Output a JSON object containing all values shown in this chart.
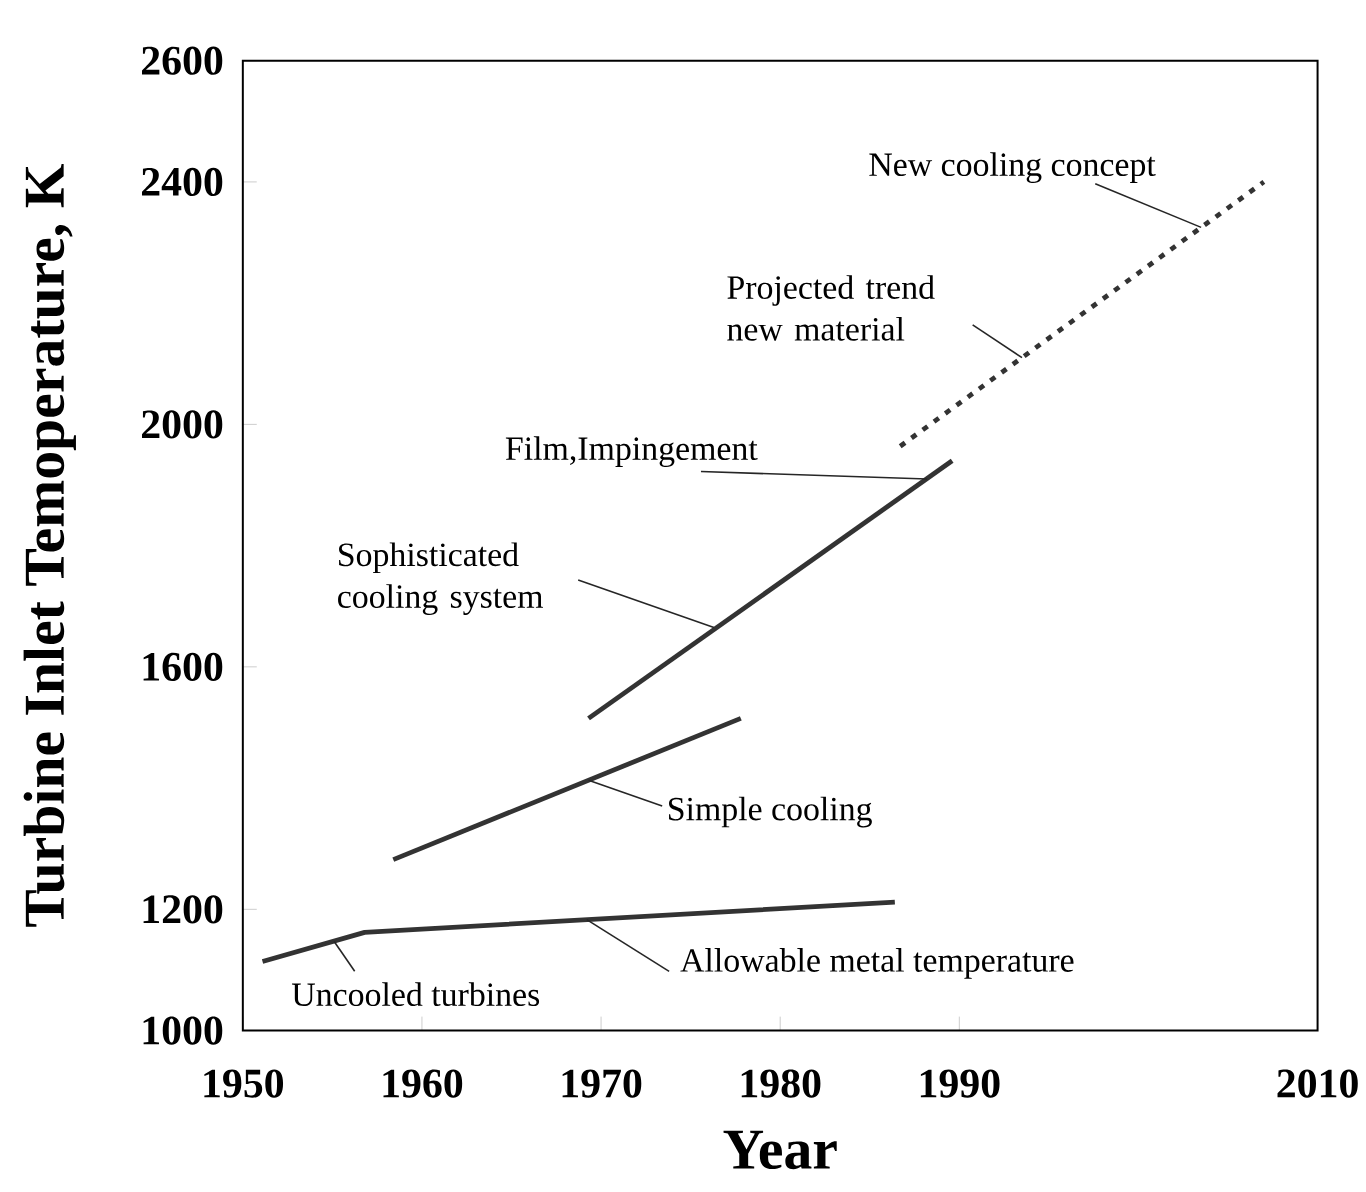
{
  "chart_data": {
    "type": "line",
    "xlabel": "Year",
    "ylabel": "Turbine Inlet Temoperature, K",
    "xlim": [
      1950,
      2010
    ],
    "xticks": [
      1950,
      1960,
      1970,
      1980,
      1990,
      2010
    ],
    "ylim": [
      1000,
      2600
    ],
    "yticks": [
      1000,
      1200,
      1600,
      2000,
      2400,
      2600
    ],
    "grid": false,
    "series": [
      {
        "color": "#333333",
        "x": [
          1951.1,
          1956.8,
          1986.4
        ],
        "values": [
          1114,
          1162,
          1212
        ]
      },
      {
        "color": "#333333",
        "x": [
          1958.4,
          1977.8
        ],
        "values": [
          1282,
          1515
        ]
      },
      {
        "color": "#333333",
        "x": [
          1969.3,
          1989.6
        ],
        "values": [
          1515,
          1940
        ]
      },
      {
        "color": "#333333",
        "x": [
          1986.7,
          2007
        ],
        "values": [
          1964,
          2400
        ],
        "line_style": "dotted"
      }
    ],
    "annotations": [
      {
        "text": "New cooling concept",
        "x": 2003.5,
        "y": 2325
      },
      {
        "text": "Projected trend new material",
        "x": 1993.5,
        "y": 2110
      },
      {
        "text": "Film,Impingement",
        "x": 1988.2,
        "y": 1910
      },
      {
        "text": "Sophisticated cooling system",
        "x": 1976.3,
        "y": 1665
      },
      {
        "text": "Simple cooling",
        "x": 1969.3,
        "y": 1413
      },
      {
        "text": "Allowable metal temperature",
        "x": 1969.2,
        "y": 1183
      },
      {
        "text": "Uncooled turbines",
        "x": 1955.1,
        "y": 1147
      }
    ]
  }
}
